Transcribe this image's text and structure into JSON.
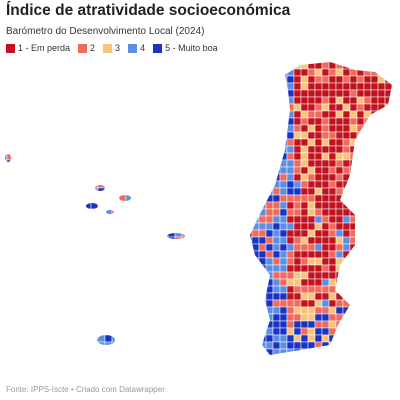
{
  "header": {
    "title": "Índice de atratividade socioeconómica",
    "subtitle": "Barómetro do Desenvolvimento Local (2024)"
  },
  "legend": [
    {
      "label": "1 - Em perda",
      "color": "#c1121f"
    },
    {
      "label": "2",
      "color": "#f26a5b"
    },
    {
      "label": "3",
      "color": "#f7c47c"
    },
    {
      "label": "4",
      "color": "#5b8ee6"
    },
    {
      "label": "5 - Muito boa",
      "color": "#1a33c4"
    }
  ],
  "footer": {
    "source": "Fonte: IPPS-Iscte • Criado com Datawrapper"
  }
}
